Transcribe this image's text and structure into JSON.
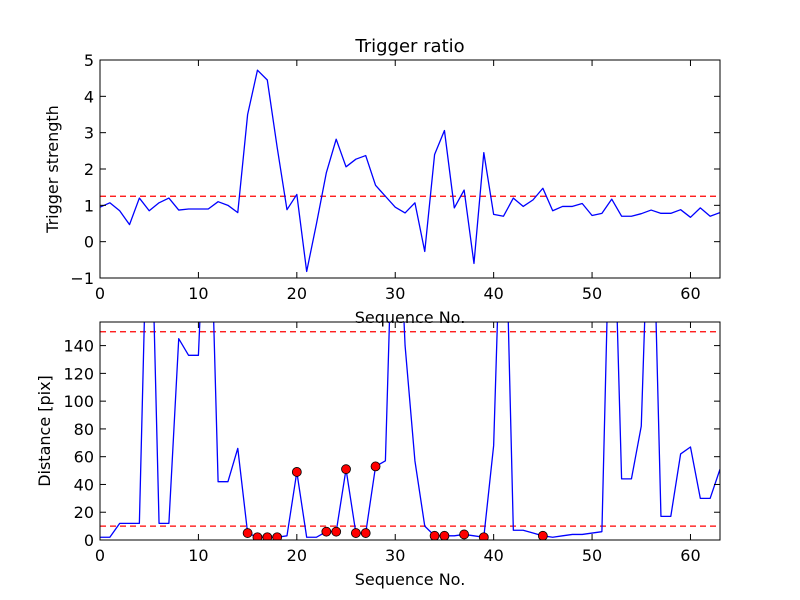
{
  "chart_data": [
    {
      "type": "line",
      "title": "Trigger ratio",
      "xlabel": "Sequence No.",
      "ylabel": "Trigger strength",
      "xlim": [
        0,
        63
      ],
      "ylim": [
        -1,
        5
      ],
      "x_ticks": [
        0,
        10,
        20,
        30,
        40,
        50,
        60
      ],
      "y_ticks": [
        -1,
        0,
        1,
        2,
        3,
        4,
        5
      ],
      "x_tick_labels": [
        "0",
        "10",
        "20",
        "30",
        "40",
        "50",
        "60"
      ],
      "y_tick_labels": [
        "−1",
        "0",
        "1",
        "2",
        "3",
        "4",
        "5"
      ],
      "grid": false,
      "series": [
        {
          "color": "#0000ff",
          "x": [
            0,
            1,
            2,
            3,
            4,
            5,
            6,
            7,
            8,
            9,
            10,
            11,
            12,
            13,
            14,
            15,
            16,
            17,
            18,
            19,
            20,
            21,
            22,
            23,
            24,
            25,
            26,
            27,
            28,
            29,
            30,
            31,
            32,
            33,
            34,
            35,
            36,
            37,
            38,
            39,
            40,
            41,
            42,
            43,
            44,
            45,
            46,
            47,
            48,
            49,
            50,
            51,
            52,
            53,
            54,
            55,
            56,
            57,
            58,
            59,
            60,
            61,
            62,
            63
          ],
          "values": [
            0.95,
            1.07,
            0.85,
            0.47,
            1.2,
            0.85,
            1.07,
            1.2,
            0.87,
            0.9,
            0.9,
            0.9,
            1.1,
            1.0,
            0.8,
            3.5,
            4.72,
            4.45,
            2.6,
            0.88,
            1.3,
            -0.82,
            0.5,
            1.9,
            2.82,
            2.06,
            2.27,
            2.37,
            1.55,
            1.25,
            0.95,
            0.79,
            1.07,
            -0.27,
            2.4,
            3.06,
            0.93,
            1.42,
            -0.6,
            2.45,
            0.75,
            0.7,
            1.2,
            0.97,
            1.15,
            1.47,
            0.85,
            0.97,
            0.97,
            1.05,
            0.72,
            0.78,
            1.17,
            0.7,
            0.7,
            0.77,
            0.87,
            0.78,
            0.78,
            0.88,
            0.67,
            0.93,
            0.7,
            0.8
          ]
        }
      ],
      "reference_lines": [
        {
          "y": 1.25,
          "color": "#ff0000",
          "style": "dashed"
        }
      ]
    },
    {
      "type": "line",
      "xlabel": "Sequence No.",
      "ylabel": "Distance [pix]",
      "xlim": [
        0,
        63
      ],
      "ylim": [
        0,
        157
      ],
      "x_ticks": [
        0,
        10,
        20,
        30,
        40,
        50,
        60
      ],
      "y_ticks": [
        0,
        20,
        40,
        60,
        80,
        100,
        120,
        140
      ],
      "x_tick_labels": [
        "0",
        "10",
        "20",
        "30",
        "40",
        "50",
        "60"
      ],
      "y_tick_labels": [
        "0",
        "20",
        "40",
        "60",
        "80",
        "100",
        "120",
        "140"
      ],
      "grid": false,
      "series": [
        {
          "color": "#0000ff",
          "x": [
            0,
            1,
            2,
            3,
            4,
            5,
            6,
            7,
            8,
            9,
            10,
            11,
            12,
            13,
            14,
            15,
            16,
            17,
            18,
            19,
            20,
            21,
            22,
            23,
            24,
            25,
            26,
            27,
            28,
            29,
            30,
            31,
            32,
            33,
            34,
            35,
            36,
            37,
            38,
            39,
            40,
            41,
            42,
            43,
            44,
            45,
            46,
            47,
            48,
            49,
            50,
            51,
            52,
            53,
            54,
            55,
            56,
            57,
            58,
            59,
            60,
            61,
            62,
            63
          ],
          "values": [
            2,
            2,
            12,
            12,
            12,
            300,
            12,
            12,
            145,
            133,
            133,
            300,
            42,
            42,
            66,
            5,
            2,
            2,
            2,
            3,
            49,
            2,
            2,
            6,
            6,
            51,
            5,
            5,
            53,
            57,
            300,
            140,
            57,
            10,
            3,
            3,
            3,
            4,
            3,
            2,
            68,
            300,
            7,
            7,
            5,
            3,
            2,
            3,
            4,
            4,
            5,
            6,
            300,
            44,
            44,
            82,
            300,
            17,
            17,
            62,
            67,
            30,
            30,
            51
          ]
        },
        {
          "type": "scatter",
          "color": "#ff0000",
          "x": [
            15,
            16,
            17,
            18,
            20,
            23,
            24,
            25,
            26,
            27,
            28,
            34,
            35,
            37,
            39,
            45
          ],
          "values": [
            5,
            2,
            2,
            2,
            49,
            6,
            6,
            51,
            5,
            5,
            53,
            3,
            3,
            4,
            2,
            3
          ]
        }
      ],
      "reference_lines": [
        {
          "y": 150,
          "color": "#ff0000",
          "style": "dashed"
        },
        {
          "y": 10,
          "color": "#ff0000",
          "style": "dashed"
        }
      ]
    }
  ]
}
